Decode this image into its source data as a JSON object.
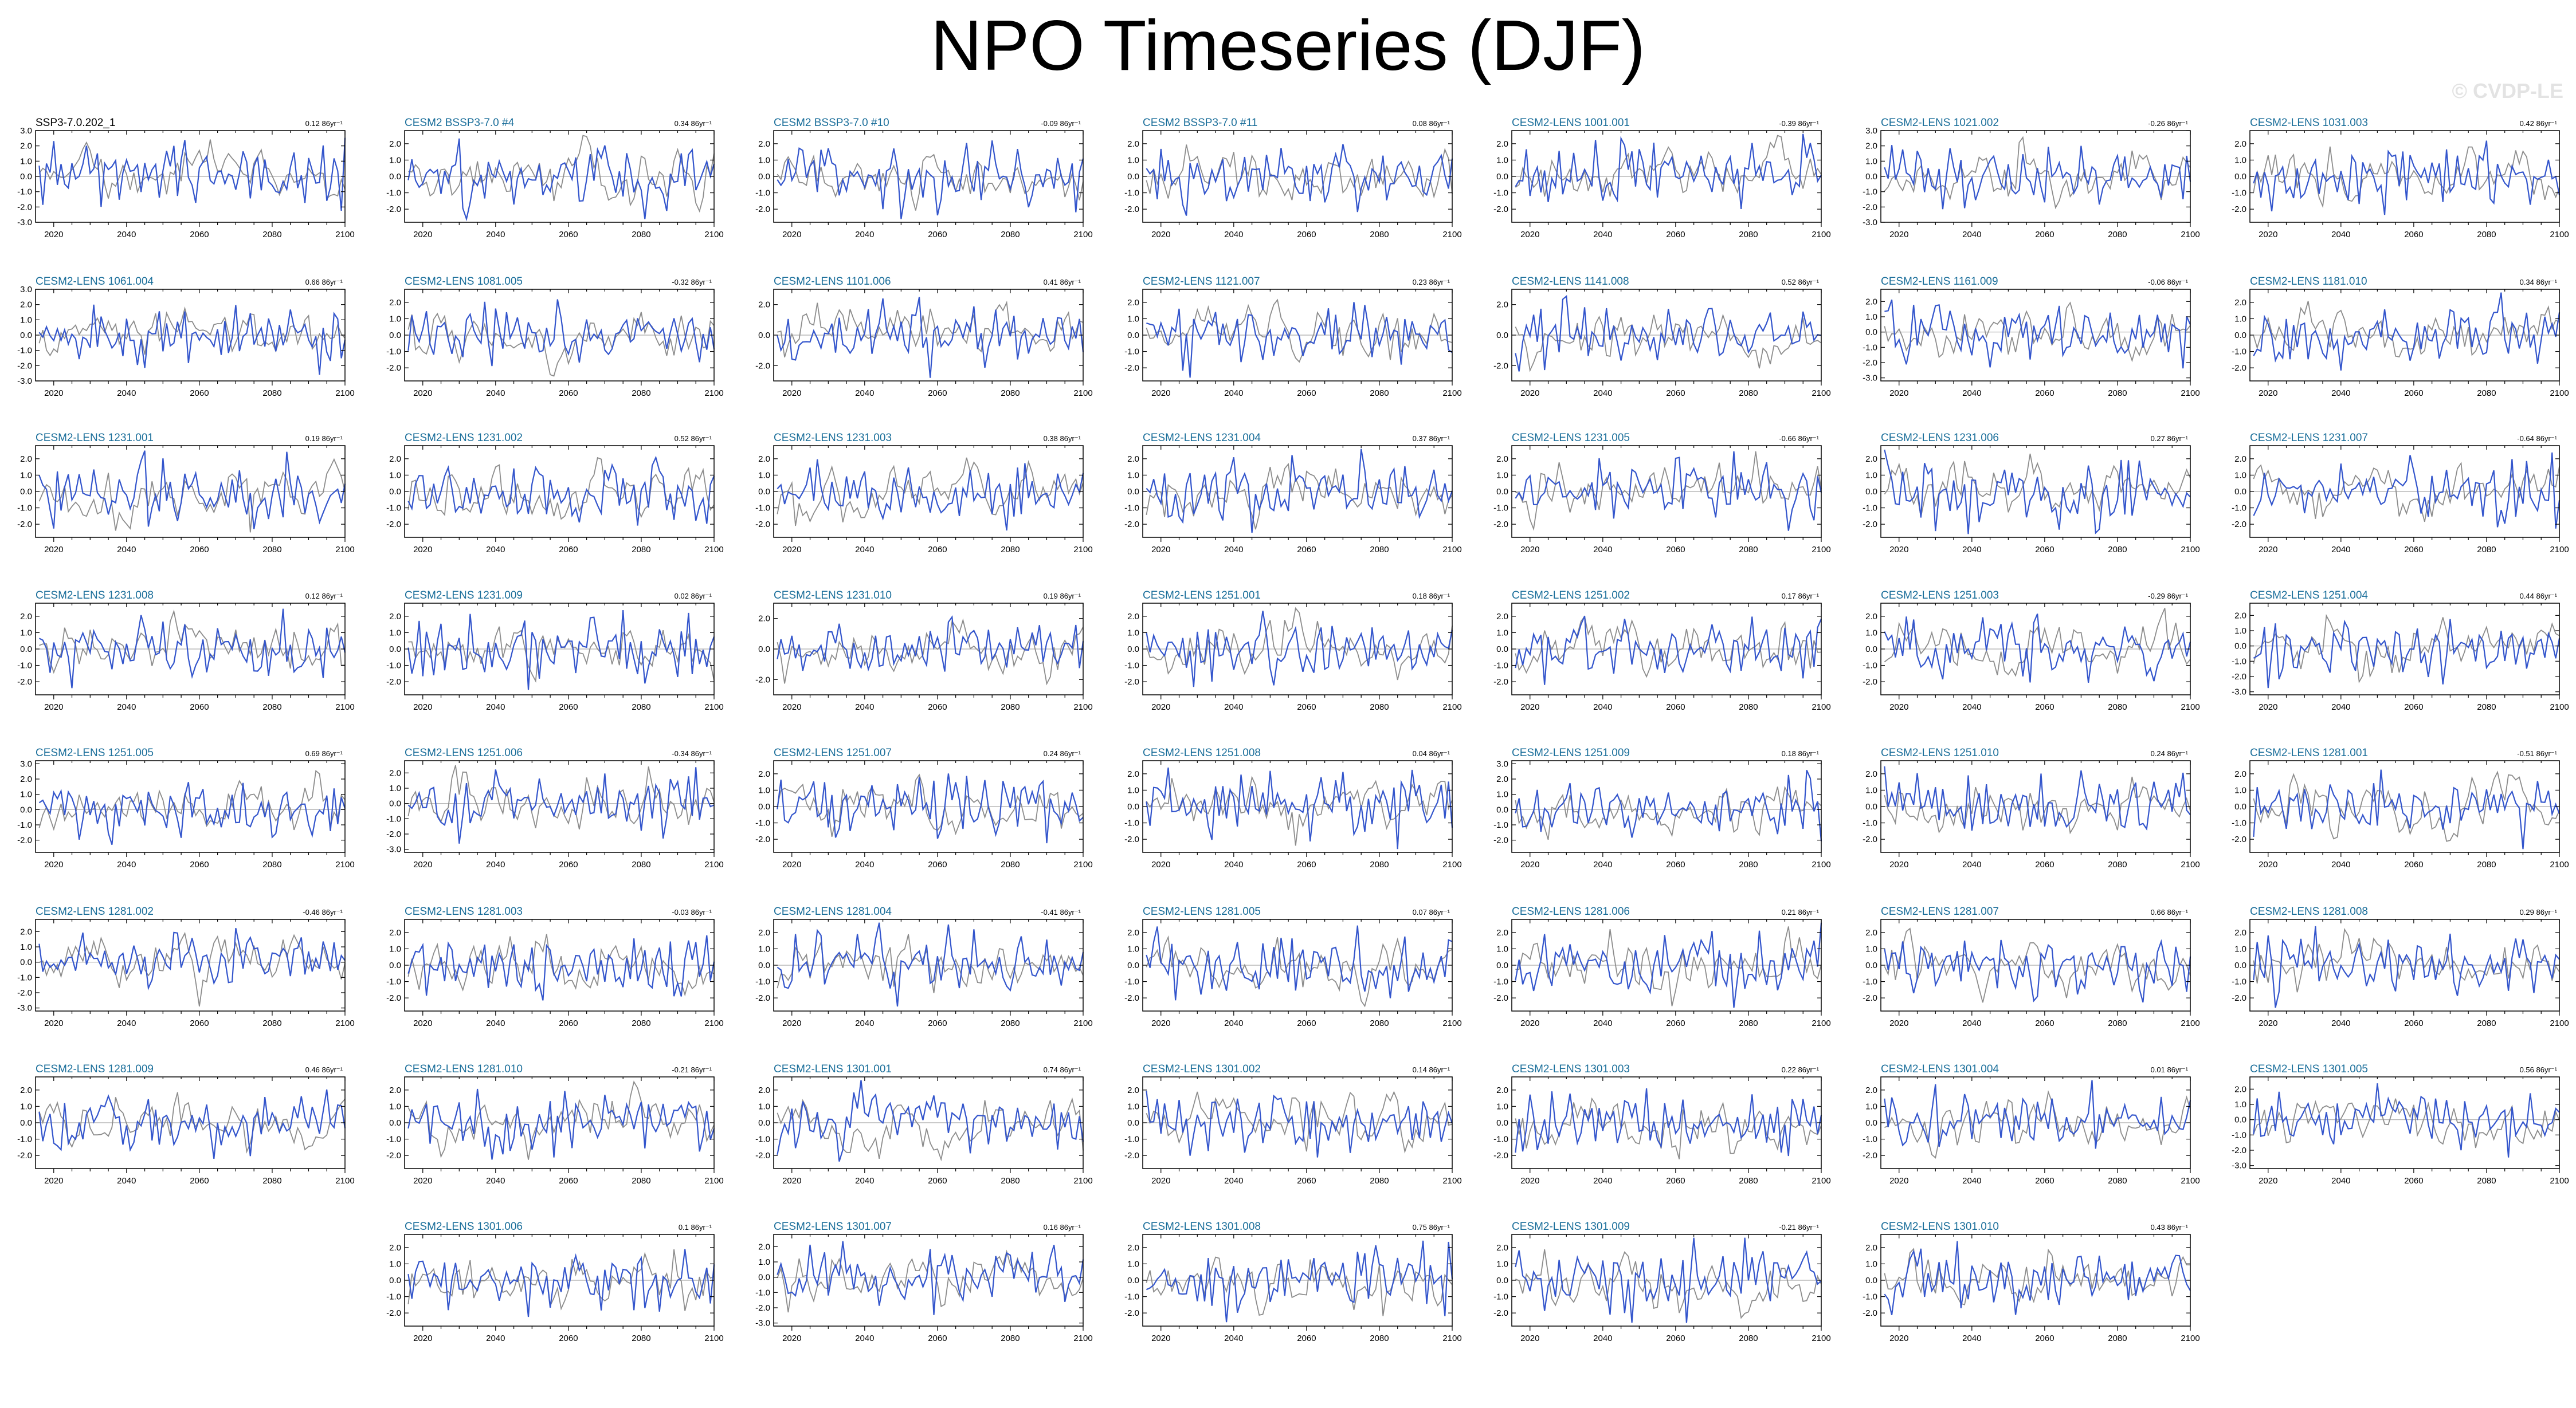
{
  "title": "NPO Timeseries (DJF)",
  "watermark": "© CVDP-LE",
  "colors": {
    "title_first": "#000000",
    "title_member": "#1a6e9a",
    "member_line": "#3355cc",
    "ensemble_line": "#8c8c8c",
    "zero_line": "#aaaaaa",
    "axis": "#000000"
  },
  "chart_data": {
    "type": "line",
    "x_ticks": [
      "2020",
      "2040",
      "2060",
      "2080",
      "2100"
    ],
    "xlim": [
      2015,
      2100
    ],
    "panels": [
      {
        "title": "SSP3-7.0.202_1",
        "trend": "0.12 86yr⁻¹",
        "y_ticks": [
          "3.0",
          "2.0",
          "1.0",
          "0.0",
          "-1.0",
          "-2.0",
          "-3.0"
        ],
        "ylim": [
          -3,
          3
        ],
        "seed": 1
      },
      {
        "title": "CESM2 BSSP3-7.0 #4",
        "trend": "0.34 86yr⁻¹",
        "y_ticks": [
          "2.0",
          "1.0",
          "0.0",
          "-1.0",
          "-2.0"
        ],
        "ylim": [
          -2.8,
          2.8
        ],
        "seed": 2
      },
      {
        "title": "CESM2 BSSP3-7.0 #10",
        "trend": "-0.09 86yr⁻¹",
        "y_ticks": [
          "2.0",
          "1.0",
          "0.0",
          "-1.0",
          "-2.0"
        ],
        "ylim": [
          -2.8,
          2.8
        ],
        "seed": 3
      },
      {
        "title": "CESM2 BSSP3-7.0 #11",
        "trend": "0.08 86yr⁻¹",
        "y_ticks": [
          "2.0",
          "1.0",
          "0.0",
          "-1.0",
          "-2.0"
        ],
        "ylim": [
          -2.8,
          2.8
        ],
        "seed": 4
      },
      {
        "title": "CESM2-LENS 1001.001",
        "trend": "-0.39 86yr⁻¹",
        "y_ticks": [
          "2.0",
          "1.0",
          "0.0",
          "-1.0",
          "-2.0"
        ],
        "ylim": [
          -2.8,
          2.8
        ],
        "seed": 5
      },
      {
        "title": "CESM2-LENS 1021.002",
        "trend": "-0.26 86yr⁻¹",
        "y_ticks": [
          "3.0",
          "2.0",
          "1.0",
          "0.0",
          "-1.0",
          "-2.0",
          "-3.0"
        ],
        "ylim": [
          -3,
          3
        ],
        "seed": 6
      },
      {
        "title": "CESM2-LENS 1031.003",
        "trend": "0.42 86yr⁻¹",
        "y_ticks": [
          "2.0",
          "1.0",
          "0.0",
          "-1.0",
          "-2.0"
        ],
        "ylim": [
          -2.8,
          2.8
        ],
        "seed": 7
      },
      {
        "title": "CESM2-LENS 1061.004",
        "trend": "0.66 86yr⁻¹",
        "y_ticks": [
          "3.0",
          "2.0",
          "1.0",
          "0.0",
          "-1.0",
          "-2.0",
          "-3.0"
        ],
        "ylim": [
          -3,
          3
        ],
        "seed": 8
      },
      {
        "title": "CESM2-LENS 1081.005",
        "trend": "-0.32 86yr⁻¹",
        "y_ticks": [
          "2.0",
          "1.0",
          "0.0",
          "-1.0",
          "-2.0"
        ],
        "ylim": [
          -2.8,
          2.8
        ],
        "seed": 9
      },
      {
        "title": "CESM2-LENS 1101.006",
        "trend": "0.41 86yr⁻¹",
        "y_ticks": [
          "2.0",
          "0.0",
          "-2.0"
        ],
        "ylim": [
          -3,
          3
        ],
        "seed": 10
      },
      {
        "title": "CESM2-LENS 1121.007",
        "trend": "0.23 86yr⁻¹",
        "y_ticks": [
          "2.0",
          "1.0",
          "0.0",
          "-1.0",
          "-2.0"
        ],
        "ylim": [
          -2.8,
          2.8
        ],
        "seed": 11
      },
      {
        "title": "CESM2-LENS 1141.008",
        "trend": "0.52 86yr⁻¹",
        "y_ticks": [
          "2.0",
          "0.0",
          "-2.0"
        ],
        "ylim": [
          -3,
          3
        ],
        "seed": 12
      },
      {
        "title": "CESM2-LENS 1161.009",
        "trend": "-0.06 86yr⁻¹",
        "y_ticks": [
          "2.0",
          "1.0",
          "0.0",
          "-1.0",
          "-2.0",
          "-3.0"
        ],
        "ylim": [
          -3.2,
          2.8
        ],
        "seed": 13
      },
      {
        "title": "CESM2-LENS 1181.010",
        "trend": "0.34 86yr⁻¹",
        "y_ticks": [
          "2.0",
          "1.0",
          "0.0",
          "-1.0",
          "-2.0"
        ],
        "ylim": [
          -2.8,
          2.8
        ],
        "seed": 14
      },
      {
        "title": "CESM2-LENS 1231.001",
        "trend": "0.19 86yr⁻¹",
        "y_ticks": [
          "2.0",
          "1.0",
          "0.0",
          "-1.0",
          "-2.0"
        ],
        "ylim": [
          -2.8,
          2.8
        ],
        "seed": 15
      },
      {
        "title": "CESM2-LENS 1231.002",
        "trend": "0.52 86yr⁻¹",
        "y_ticks": [
          "2.0",
          "1.0",
          "0.0",
          "-1.0",
          "-2.0"
        ],
        "ylim": [
          -2.8,
          2.8
        ],
        "seed": 16
      },
      {
        "title": "CESM2-LENS 1231.003",
        "trend": "0.38 86yr⁻¹",
        "y_ticks": [
          "2.0",
          "1.0",
          "0.0",
          "-1.0",
          "-2.0"
        ],
        "ylim": [
          -2.8,
          2.8
        ],
        "seed": 17
      },
      {
        "title": "CESM2-LENS 1231.004",
        "trend": "0.37 86yr⁻¹",
        "y_ticks": [
          "2.0",
          "1.0",
          "0.0",
          "-1.0",
          "-2.0"
        ],
        "ylim": [
          -2.8,
          2.8
        ],
        "seed": 18
      },
      {
        "title": "CESM2-LENS 1231.005",
        "trend": "-0.66 86yr⁻¹",
        "y_ticks": [
          "2.0",
          "1.0",
          "0.0",
          "-1.0",
          "-2.0"
        ],
        "ylim": [
          -2.8,
          2.8
        ],
        "seed": 19
      },
      {
        "title": "CESM2-LENS 1231.006",
        "trend": "0.27 86yr⁻¹",
        "y_ticks": [
          "2.0",
          "1.0",
          "0.0",
          "-1.0",
          "-2.0"
        ],
        "ylim": [
          -2.8,
          2.8
        ],
        "seed": 20
      },
      {
        "title": "CESM2-LENS 1231.007",
        "trend": "-0.64 86yr⁻¹",
        "y_ticks": [
          "2.0",
          "1.0",
          "0.0",
          "-1.0",
          "-2.0"
        ],
        "ylim": [
          -2.8,
          2.8
        ],
        "seed": 21
      },
      {
        "title": "CESM2-LENS 1231.008",
        "trend": "0.12 86yr⁻¹",
        "y_ticks": [
          "2.0",
          "1.0",
          "0.0",
          "-1.0",
          "-2.0"
        ],
        "ylim": [
          -2.8,
          2.8
        ],
        "seed": 22
      },
      {
        "title": "CESM2-LENS 1231.009",
        "trend": "0.02 86yr⁻¹",
        "y_ticks": [
          "2.0",
          "1.0",
          "0.0",
          "-1.0",
          "-2.0"
        ],
        "ylim": [
          -2.8,
          2.8
        ],
        "seed": 23
      },
      {
        "title": "CESM2-LENS 1231.010",
        "trend": "0.19 86yr⁻¹",
        "y_ticks": [
          "2.0",
          "0.0",
          "-2.0"
        ],
        "ylim": [
          -3,
          3
        ],
        "seed": 24
      },
      {
        "title": "CESM2-LENS 1251.001",
        "trend": "0.18 86yr⁻¹",
        "y_ticks": [
          "2.0",
          "1.0",
          "0.0",
          "-1.0",
          "-2.0"
        ],
        "ylim": [
          -2.8,
          2.8
        ],
        "seed": 25
      },
      {
        "title": "CESM2-LENS 1251.002",
        "trend": "0.17 86yr⁻¹",
        "y_ticks": [
          "2.0",
          "1.0",
          "0.0",
          "-1.0",
          "-2.0"
        ],
        "ylim": [
          -2.8,
          2.8
        ],
        "seed": 26
      },
      {
        "title": "CESM2-LENS 1251.003",
        "trend": "-0.29 86yr⁻¹",
        "y_ticks": [
          "2.0",
          "1.0",
          "0.0",
          "-1.0",
          "-2.0"
        ],
        "ylim": [
          -2.8,
          2.8
        ],
        "seed": 27
      },
      {
        "title": "CESM2-LENS 1251.004",
        "trend": "0.44 86yr⁻¹",
        "y_ticks": [
          "2.0",
          "1.0",
          "0.0",
          "-1.0",
          "-2.0",
          "-3.0"
        ],
        "ylim": [
          -3.2,
          2.8
        ],
        "seed": 28
      },
      {
        "title": "CESM2-LENS 1251.005",
        "trend": "0.69 86yr⁻¹",
        "y_ticks": [
          "3.0",
          "2.0",
          "1.0",
          "0.0",
          "-1.0",
          "-2.0"
        ],
        "ylim": [
          -2.8,
          3.2
        ],
        "seed": 29
      },
      {
        "title": "CESM2-LENS 1251.006",
        "trend": "-0.34 86yr⁻¹",
        "y_ticks": [
          "2.0",
          "1.0",
          "0.0",
          "-1.0",
          "-2.0",
          "-3.0"
        ],
        "ylim": [
          -3.2,
          2.8
        ],
        "seed": 30
      },
      {
        "title": "CESM2-LENS 1251.007",
        "trend": "0.24 86yr⁻¹",
        "y_ticks": [
          "2.0",
          "1.0",
          "0.0",
          "-1.0",
          "-2.0"
        ],
        "ylim": [
          -2.8,
          2.8
        ],
        "seed": 31
      },
      {
        "title": "CESM2-LENS 1251.008",
        "trend": "0.04 86yr⁻¹",
        "y_ticks": [
          "2.0",
          "1.0",
          "0.0",
          "-1.0",
          "-2.0"
        ],
        "ylim": [
          -2.8,
          2.8
        ],
        "seed": 32
      },
      {
        "title": "CESM2-LENS 1251.009",
        "trend": "0.18 86yr⁻¹",
        "y_ticks": [
          "3.0",
          "2.0",
          "1.0",
          "0.0",
          "-1.0",
          "-2.0"
        ],
        "ylim": [
          -2.8,
          3.2
        ],
        "seed": 33
      },
      {
        "title": "CESM2-LENS 1251.010",
        "trend": "0.24 86yr⁻¹",
        "y_ticks": [
          "2.0",
          "1.0",
          "0.0",
          "-1.0",
          "-2.0"
        ],
        "ylim": [
          -2.8,
          2.8
        ],
        "seed": 34
      },
      {
        "title": "CESM2-LENS 1281.001",
        "trend": "-0.51 86yr⁻¹",
        "y_ticks": [
          "2.0",
          "1.0",
          "0.0",
          "-1.0",
          "-2.0"
        ],
        "ylim": [
          -2.8,
          2.8
        ],
        "seed": 35
      },
      {
        "title": "CESM2-LENS 1281.002",
        "trend": "-0.46 86yr⁻¹",
        "y_ticks": [
          "2.0",
          "1.0",
          "0.0",
          "-1.0",
          "-2.0",
          "-3.0"
        ],
        "ylim": [
          -3.2,
          2.8
        ],
        "seed": 36
      },
      {
        "title": "CESM2-LENS 1281.003",
        "trend": "-0.03 86yr⁻¹",
        "y_ticks": [
          "2.0",
          "1.0",
          "0.0",
          "-1.0",
          "-2.0"
        ],
        "ylim": [
          -2.8,
          2.8
        ],
        "seed": 37
      },
      {
        "title": "CESM2-LENS 1281.004",
        "trend": "-0.41 86yr⁻¹",
        "y_ticks": [
          "2.0",
          "1.0",
          "0.0",
          "-1.0",
          "-2.0"
        ],
        "ylim": [
          -2.8,
          2.8
        ],
        "seed": 38
      },
      {
        "title": "CESM2-LENS 1281.005",
        "trend": "0.07 86yr⁻¹",
        "y_ticks": [
          "2.0",
          "1.0",
          "0.0",
          "-1.0",
          "-2.0"
        ],
        "ylim": [
          -2.8,
          2.8
        ],
        "seed": 39
      },
      {
        "title": "CESM2-LENS 1281.006",
        "trend": "0.21 86yr⁻¹",
        "y_ticks": [
          "2.0",
          "1.0",
          "0.0",
          "-1.0",
          "-2.0"
        ],
        "ylim": [
          -2.8,
          2.8
        ],
        "seed": 40
      },
      {
        "title": "CESM2-LENS 1281.007",
        "trend": "0.66 86yr⁻¹",
        "y_ticks": [
          "2.0",
          "1.0",
          "0.0",
          "-1.0",
          "-2.0"
        ],
        "ylim": [
          -2.8,
          2.8
        ],
        "seed": 41
      },
      {
        "title": "CESM2-LENS 1281.008",
        "trend": "0.29 86yr⁻¹",
        "y_ticks": [
          "2.0",
          "1.0",
          "0.0",
          "-1.0",
          "-2.0"
        ],
        "ylim": [
          -2.8,
          2.8
        ],
        "seed": 42
      },
      {
        "title": "CESM2-LENS 1281.009",
        "trend": "0.46 86yr⁻¹",
        "y_ticks": [
          "2.0",
          "1.0",
          "0.0",
          "-1.0",
          "-2.0"
        ],
        "ylim": [
          -2.8,
          2.8
        ],
        "seed": 43
      },
      {
        "title": "CESM2-LENS 1281.010",
        "trend": "-0.21 86yr⁻¹",
        "y_ticks": [
          "2.0",
          "1.0",
          "0.0",
          "-1.0",
          "-2.0"
        ],
        "ylim": [
          -2.8,
          2.8
        ],
        "seed": 44
      },
      {
        "title": "CESM2-LENS 1301.001",
        "trend": "0.74 86yr⁻¹",
        "y_ticks": [
          "2.0",
          "1.0",
          "0.0",
          "-1.0",
          "-2.0"
        ],
        "ylim": [
          -2.8,
          2.8
        ],
        "seed": 45
      },
      {
        "title": "CESM2-LENS 1301.002",
        "trend": "0.14 86yr⁻¹",
        "y_ticks": [
          "2.0",
          "1.0",
          "0.0",
          "-1.0",
          "-2.0"
        ],
        "ylim": [
          -2.8,
          2.8
        ],
        "seed": 46
      },
      {
        "title": "CESM2-LENS 1301.003",
        "trend": "0.22 86yr⁻¹",
        "y_ticks": [
          "2.0",
          "1.0",
          "0.0",
          "-1.0",
          "-2.0"
        ],
        "ylim": [
          -2.8,
          2.8
        ],
        "seed": 47
      },
      {
        "title": "CESM2-LENS 1301.004",
        "trend": "0.01 86yr⁻¹",
        "y_ticks": [
          "2.0",
          "1.0",
          "0.0",
          "-1.0",
          "-2.0"
        ],
        "ylim": [
          -2.8,
          2.8
        ],
        "seed": 48
      },
      {
        "title": "CESM2-LENS 1301.005",
        "trend": "0.56 86yr⁻¹",
        "y_ticks": [
          "2.0",
          "1.0",
          "0.0",
          "-1.0",
          "-2.0",
          "-3.0"
        ],
        "ylim": [
          -3.2,
          2.8
        ],
        "seed": 49
      },
      {
        "title": "CESM2-LENS 1301.006",
        "trend": "0.1 86yr⁻¹",
        "y_ticks": [
          "2.0",
          "1.0",
          "0.0",
          "-1.0",
          "-2.0"
        ],
        "ylim": [
          -2.8,
          2.8
        ],
        "seed": 50
      },
      {
        "title": "CESM2-LENS 1301.007",
        "trend": "0.16 86yr⁻¹",
        "y_ticks": [
          "2.0",
          "1.0",
          "0.0",
          "-1.0",
          "-2.0",
          "-3.0"
        ],
        "ylim": [
          -3.2,
          2.8
        ],
        "seed": 51
      },
      {
        "title": "CESM2-LENS 1301.008",
        "trend": "0.75 86yr⁻¹",
        "y_ticks": [
          "2.0",
          "1.0",
          "0.0",
          "-1.0",
          "-2.0"
        ],
        "ylim": [
          -2.8,
          2.8
        ],
        "seed": 52
      },
      {
        "title": "CESM2-LENS 1301.009",
        "trend": "-0.21 86yr⁻¹",
        "y_ticks": [
          "2.0",
          "1.0",
          "0.0",
          "-1.0",
          "-2.0"
        ],
        "ylim": [
          -2.8,
          2.8
        ],
        "seed": 53
      },
      {
        "title": "CESM2-LENS 1301.010",
        "trend": "0.43 86yr⁻¹",
        "y_ticks": [
          "2.0",
          "1.0",
          "0.0",
          "-1.0",
          "-2.0"
        ],
        "ylim": [
          -2.8,
          2.8
        ],
        "seed": 54
      }
    ]
  }
}
